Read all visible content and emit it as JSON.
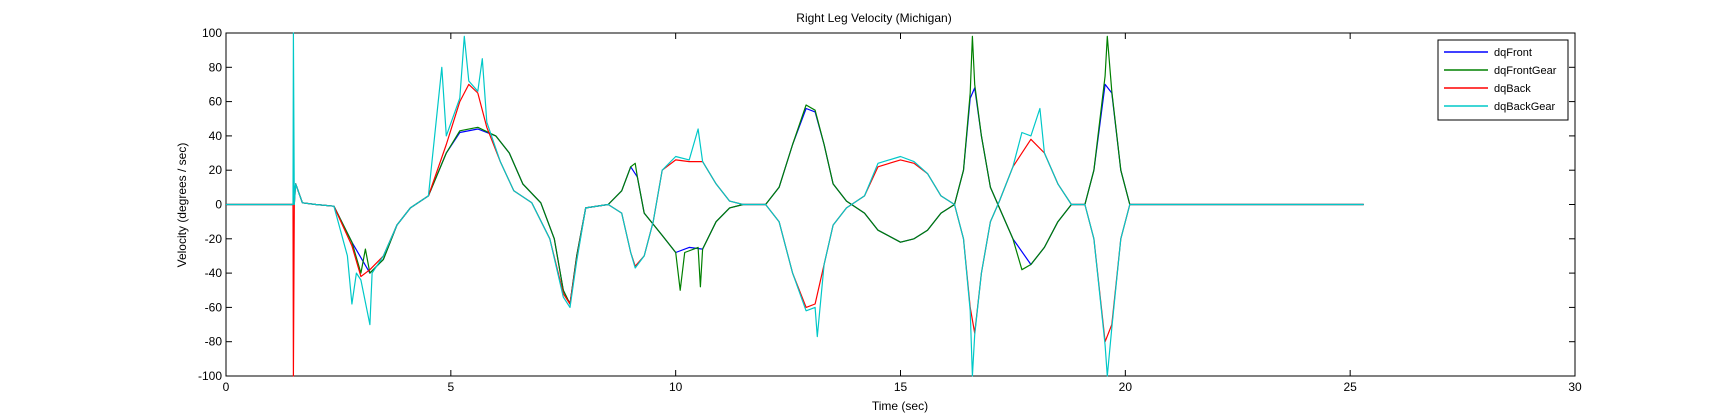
{
  "chart_data": {
    "type": "line",
    "title": "Right Leg Velocity (Michigan)",
    "xlabel": "Time (sec)",
    "ylabel": "Velocity (degrees / sec)",
    "xlim": [
      0,
      30
    ],
    "ylim": [
      -100,
      100
    ],
    "xticks": [
      0,
      5,
      10,
      15,
      20,
      25,
      30
    ],
    "yticks": [
      -100,
      -80,
      -60,
      -40,
      -20,
      0,
      20,
      40,
      60,
      80,
      100
    ],
    "grid": false,
    "legend_position": "top-right",
    "series": [
      {
        "name": "dqFront",
        "color": "#0000ff",
        "points": [
          [
            0,
            0
          ],
          [
            1.5,
            0
          ],
          [
            1.55,
            12
          ],
          [
            1.7,
            1
          ],
          [
            2,
            0
          ],
          [
            2.4,
            -1
          ],
          [
            2.8,
            -22
          ],
          [
            3.2,
            -40
          ],
          [
            3.5,
            -32
          ],
          [
            3.8,
            -12
          ],
          [
            4.1,
            -2
          ],
          [
            4.5,
            5
          ],
          [
            4.9,
            30
          ],
          [
            5.2,
            42
          ],
          [
            5.6,
            44
          ],
          [
            6,
            40
          ],
          [
            6.3,
            30
          ],
          [
            6.6,
            12
          ],
          [
            7,
            1
          ],
          [
            7.3,
            -20
          ],
          [
            7.5,
            -50
          ],
          [
            7.65,
            -58
          ],
          [
            7.8,
            -30
          ],
          [
            8,
            -2
          ],
          [
            8.5,
            0
          ],
          [
            8.8,
            8
          ],
          [
            9,
            22
          ],
          [
            9.15,
            16
          ],
          [
            9.3,
            -5
          ],
          [
            9.7,
            -18
          ],
          [
            10,
            -28
          ],
          [
            10.3,
            -25
          ],
          [
            10.6,
            -26
          ],
          [
            10.9,
            -10
          ],
          [
            11.2,
            -2
          ],
          [
            11.5,
            0
          ],
          [
            12,
            0
          ],
          [
            12.3,
            10
          ],
          [
            12.6,
            35
          ],
          [
            12.9,
            56
          ],
          [
            13.1,
            54
          ],
          [
            13.3,
            35
          ],
          [
            13.5,
            12
          ],
          [
            13.8,
            2
          ],
          [
            14.2,
            -5
          ],
          [
            14.5,
            -15
          ],
          [
            15,
            -22
          ],
          [
            15.3,
            -20
          ],
          [
            15.6,
            -15
          ],
          [
            15.9,
            -5
          ],
          [
            16.2,
            0
          ],
          [
            16.4,
            20
          ],
          [
            16.55,
            62
          ],
          [
            16.65,
            68
          ],
          [
            16.8,
            40
          ],
          [
            17,
            10
          ],
          [
            17.2,
            -2
          ],
          [
            17.5,
            -20
          ],
          [
            17.9,
            -35
          ],
          [
            18.2,
            -25
          ],
          [
            18.5,
            -10
          ],
          [
            18.8,
            0
          ],
          [
            19.1,
            0
          ],
          [
            19.3,
            20
          ],
          [
            19.55,
            70
          ],
          [
            19.7,
            65
          ],
          [
            19.9,
            20
          ],
          [
            20.1,
            0
          ],
          [
            21,
            0
          ],
          [
            25.3,
            0
          ]
        ]
      },
      {
        "name": "dqFrontGear",
        "color": "#008000",
        "points": [
          [
            0,
            0
          ],
          [
            1.5,
            0
          ],
          [
            1.55,
            12
          ],
          [
            1.7,
            1
          ],
          [
            2,
            0
          ],
          [
            2.4,
            -1
          ],
          [
            2.8,
            -22
          ],
          [
            3.0,
            -40
          ],
          [
            3.1,
            -26
          ],
          [
            3.2,
            -40
          ],
          [
            3.5,
            -32
          ],
          [
            3.8,
            -12
          ],
          [
            4.1,
            -2
          ],
          [
            4.5,
            5
          ],
          [
            4.9,
            30
          ],
          [
            5.2,
            43
          ],
          [
            5.6,
            45
          ],
          [
            6,
            40
          ],
          [
            6.3,
            30
          ],
          [
            6.6,
            12
          ],
          [
            7,
            1
          ],
          [
            7.3,
            -20
          ],
          [
            7.5,
            -50
          ],
          [
            7.65,
            -58
          ],
          [
            7.8,
            -30
          ],
          [
            8,
            -2
          ],
          [
            8.5,
            0
          ],
          [
            8.8,
            8
          ],
          [
            9,
            22
          ],
          [
            9.1,
            24
          ],
          [
            9.15,
            16
          ],
          [
            9.3,
            -5
          ],
          [
            9.7,
            -18
          ],
          [
            10,
            -28
          ],
          [
            10.1,
            -50
          ],
          [
            10.2,
            -28
          ],
          [
            10.5,
            -25
          ],
          [
            10.55,
            -48
          ],
          [
            10.6,
            -26
          ],
          [
            10.9,
            -10
          ],
          [
            11.2,
            -2
          ],
          [
            11.5,
            0
          ],
          [
            12,
            0
          ],
          [
            12.3,
            10
          ],
          [
            12.6,
            35
          ],
          [
            12.9,
            58
          ],
          [
            13.1,
            55
          ],
          [
            13.3,
            35
          ],
          [
            13.5,
            12
          ],
          [
            13.8,
            2
          ],
          [
            14.2,
            -5
          ],
          [
            14.5,
            -15
          ],
          [
            15,
            -22
          ],
          [
            15.3,
            -20
          ],
          [
            15.6,
            -15
          ],
          [
            15.9,
            -5
          ],
          [
            16.2,
            0
          ],
          [
            16.4,
            20
          ],
          [
            16.55,
            65
          ],
          [
            16.6,
            98
          ],
          [
            16.65,
            70
          ],
          [
            16.8,
            40
          ],
          [
            17,
            10
          ],
          [
            17.2,
            -2
          ],
          [
            17.5,
            -20
          ],
          [
            17.7,
            -38
          ],
          [
            17.9,
            -35
          ],
          [
            18.2,
            -25
          ],
          [
            18.5,
            -10
          ],
          [
            18.8,
            0
          ],
          [
            19.1,
            0
          ],
          [
            19.3,
            20
          ],
          [
            19.55,
            75
          ],
          [
            19.6,
            98
          ],
          [
            19.7,
            66
          ],
          [
            19.9,
            20
          ],
          [
            20.1,
            0
          ],
          [
            21,
            0
          ],
          [
            25.3,
            0
          ]
        ]
      },
      {
        "name": "dqBack",
        "color": "#ff0000",
        "points": [
          [
            0,
            0
          ],
          [
            1.49,
            0
          ],
          [
            1.5,
            -100
          ],
          [
            1.52,
            0
          ],
          [
            1.55,
            12
          ],
          [
            1.7,
            1
          ],
          [
            2,
            0
          ],
          [
            2.4,
            -1
          ],
          [
            2.8,
            -24
          ],
          [
            3.0,
            -42
          ],
          [
            3.2,
            -38
          ],
          [
            3.5,
            -30
          ],
          [
            3.8,
            -12
          ],
          [
            4.1,
            -2
          ],
          [
            4.5,
            5
          ],
          [
            4.9,
            35
          ],
          [
            5.2,
            60
          ],
          [
            5.4,
            70
          ],
          [
            5.6,
            65
          ],
          [
            5.8,
            45
          ],
          [
            6.1,
            25
          ],
          [
            6.4,
            8
          ],
          [
            6.8,
            1
          ],
          [
            7.2,
            -20
          ],
          [
            7.5,
            -52
          ],
          [
            7.65,
            -58
          ],
          [
            7.8,
            -32
          ],
          [
            8,
            -2
          ],
          [
            8.5,
            0
          ],
          [
            8.8,
            -5
          ],
          [
            9,
            -28
          ],
          [
            9.1,
            -36
          ],
          [
            9.3,
            -30
          ],
          [
            9.5,
            -10
          ],
          [
            9.7,
            20
          ],
          [
            10,
            26
          ],
          [
            10.3,
            25
          ],
          [
            10.6,
            25
          ],
          [
            10.9,
            12
          ],
          [
            11.2,
            2
          ],
          [
            11.5,
            0
          ],
          [
            12,
            0
          ],
          [
            12.3,
            -10
          ],
          [
            12.6,
            -40
          ],
          [
            12.9,
            -60
          ],
          [
            13.1,
            -58
          ],
          [
            13.3,
            -35
          ],
          [
            13.5,
            -12
          ],
          [
            13.8,
            -2
          ],
          [
            14.2,
            5
          ],
          [
            14.5,
            22
          ],
          [
            15,
            26
          ],
          [
            15.3,
            24
          ],
          [
            15.6,
            18
          ],
          [
            15.9,
            5
          ],
          [
            16.2,
            0
          ],
          [
            16.4,
            -20
          ],
          [
            16.55,
            -60
          ],
          [
            16.65,
            -75
          ],
          [
            16.8,
            -40
          ],
          [
            17,
            -10
          ],
          [
            17.2,
            2
          ],
          [
            17.5,
            22
          ],
          [
            17.9,
            38
          ],
          [
            18.2,
            30
          ],
          [
            18.5,
            12
          ],
          [
            18.8,
            0
          ],
          [
            19.1,
            0
          ],
          [
            19.3,
            -20
          ],
          [
            19.55,
            -80
          ],
          [
            19.7,
            -70
          ],
          [
            19.9,
            -20
          ],
          [
            20.1,
            0
          ],
          [
            21,
            0
          ],
          [
            25.3,
            0
          ]
        ]
      },
      {
        "name": "dqBackGear",
        "color": "#00c8c8",
        "points": [
          [
            0,
            0
          ],
          [
            1.49,
            0
          ],
          [
            1.5,
            100
          ],
          [
            1.52,
            0
          ],
          [
            1.55,
            12
          ],
          [
            1.7,
            1
          ],
          [
            2,
            0
          ],
          [
            2.4,
            -1
          ],
          [
            2.7,
            -30
          ],
          [
            2.8,
            -58
          ],
          [
            2.9,
            -40
          ],
          [
            3.0,
            -44
          ],
          [
            3.2,
            -70
          ],
          [
            3.25,
            -40
          ],
          [
            3.5,
            -30
          ],
          [
            3.8,
            -12
          ],
          [
            4.1,
            -2
          ],
          [
            4.5,
            5
          ],
          [
            4.8,
            80
          ],
          [
            4.9,
            40
          ],
          [
            5.2,
            62
          ],
          [
            5.3,
            98
          ],
          [
            5.4,
            72
          ],
          [
            5.6,
            66
          ],
          [
            5.7,
            85
          ],
          [
            5.8,
            48
          ],
          [
            6.1,
            25
          ],
          [
            6.4,
            8
          ],
          [
            6.8,
            1
          ],
          [
            7.2,
            -20
          ],
          [
            7.5,
            -54
          ],
          [
            7.65,
            -60
          ],
          [
            7.8,
            -33
          ],
          [
            8,
            -2
          ],
          [
            8.5,
            0
          ],
          [
            8.8,
            -5
          ],
          [
            9,
            -28
          ],
          [
            9.1,
            -37
          ],
          [
            9.3,
            -30
          ],
          [
            9.5,
            -10
          ],
          [
            9.7,
            20
          ],
          [
            10,
            28
          ],
          [
            10.3,
            26
          ],
          [
            10.5,
            44
          ],
          [
            10.6,
            25
          ],
          [
            10.9,
            12
          ],
          [
            11.2,
            2
          ],
          [
            11.5,
            0
          ],
          [
            12,
            0
          ],
          [
            12.3,
            -10
          ],
          [
            12.6,
            -40
          ],
          [
            12.9,
            -62
          ],
          [
            13.1,
            -60
          ],
          [
            13.15,
            -77
          ],
          [
            13.3,
            -35
          ],
          [
            13.5,
            -12
          ],
          [
            13.8,
            -2
          ],
          [
            14.2,
            5
          ],
          [
            14.5,
            24
          ],
          [
            15,
            28
          ],
          [
            15.3,
            25
          ],
          [
            15.6,
            18
          ],
          [
            15.9,
            5
          ],
          [
            16.2,
            0
          ],
          [
            16.4,
            -20
          ],
          [
            16.55,
            -62
          ],
          [
            16.6,
            -100
          ],
          [
            16.65,
            -76
          ],
          [
            16.8,
            -40
          ],
          [
            17,
            -10
          ],
          [
            17.2,
            2
          ],
          [
            17.5,
            22
          ],
          [
            17.7,
            42
          ],
          [
            17.9,
            40
          ],
          [
            18.1,
            56
          ],
          [
            18.2,
            30
          ],
          [
            18.5,
            12
          ],
          [
            18.8,
            0
          ],
          [
            19.1,
            0
          ],
          [
            19.3,
            -20
          ],
          [
            19.55,
            -82
          ],
          [
            19.6,
            -100
          ],
          [
            19.7,
            -72
          ],
          [
            19.9,
            -20
          ],
          [
            20.1,
            0
          ],
          [
            21,
            0
          ],
          [
            25.3,
            0
          ]
        ]
      }
    ]
  }
}
